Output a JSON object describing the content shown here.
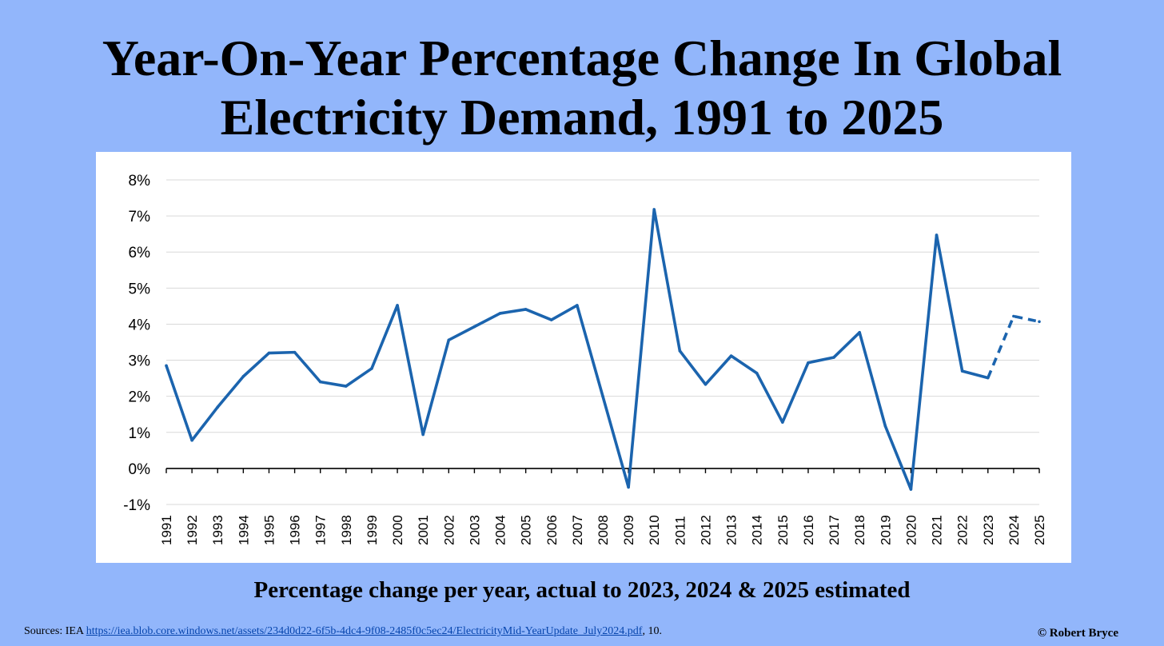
{
  "header": {
    "title_line1": "Year-On-Year Percentage Change In Global",
    "title_line2": "Electricity Demand, 1991 to 2025"
  },
  "caption": "Percentage change per year, actual to 2023, 2024 & 2025 estimated",
  "footer": {
    "sources_prefix": "Sources:  IEA ",
    "sources_link": "https://iea.blob.core.windows.net/assets/234d0d22-6f5b-4dc4-9f08-2485f0c5ec24/ElectricityMid-YearUpdate_July2024.pdf",
    "sources_suffix": ", 10.",
    "copyright": "© Robert Bryce"
  },
  "colors": {
    "line": "#1b64ae",
    "grid": "#d9d9d9",
    "background": "#92b6fb"
  },
  "chart_data": {
    "type": "line",
    "categories": [
      "1991",
      "1992",
      "1993",
      "1994",
      "1995",
      "1996",
      "1997",
      "1998",
      "1999",
      "2000",
      "2001",
      "2002",
      "2003",
      "2004",
      "2005",
      "2006",
      "2007",
      "2008",
      "2009",
      "2010",
      "2011",
      "2012",
      "2013",
      "2014",
      "2015",
      "2016",
      "2017",
      "2018",
      "2019",
      "2020",
      "2021",
      "2022",
      "2023",
      "2024",
      "2025"
    ],
    "values": [
      2.85,
      0.78,
      1.7,
      2.55,
      3.2,
      3.22,
      2.4,
      2.28,
      2.77,
      4.52,
      0.94,
      3.56,
      3.93,
      4.3,
      4.41,
      4.12,
      4.52,
      2.0,
      -0.52,
      7.18,
      3.26,
      2.33,
      3.12,
      2.64,
      1.28,
      2.93,
      3.08,
      3.77,
      1.18,
      -0.58,
      6.47,
      2.7,
      2.51,
      4.22,
      4.07
    ],
    "estimated_from": "2023",
    "ylim": [
      -1,
      8
    ],
    "yticks": [
      -1,
      0,
      1,
      2,
      3,
      4,
      5,
      6,
      7,
      8
    ],
    "ytick_labels": [
      "-1%",
      "0%",
      "1%",
      "2%",
      "3%",
      "4%",
      "5%",
      "6%",
      "7%",
      "8%"
    ],
    "grid": true,
    "legend": "none"
  }
}
